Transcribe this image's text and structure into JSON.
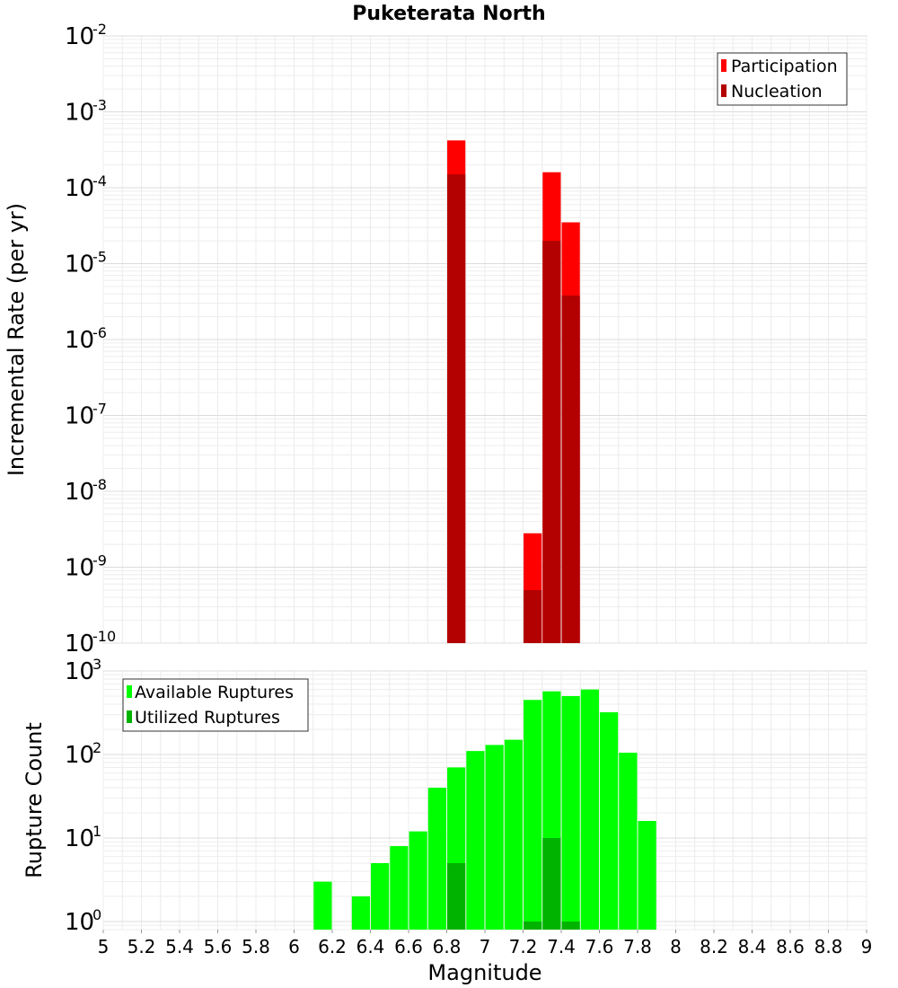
{
  "chart_data": [
    {
      "type": "bar",
      "title": "Puketerata North",
      "ylabel": "Incremental Rate (per yr)",
      "xlabel": "",
      "yscale": "log",
      "ylim": [
        1e-10,
        0.01
      ],
      "xlim": [
        5,
        9
      ],
      "ytick_exponents": [
        "-2",
        "-3",
        "-4",
        "-5",
        "-6",
        "-7",
        "-8",
        "-9",
        "-10"
      ],
      "ytick_base": "10",
      "grid": true,
      "legend_position": "top-right",
      "series": [
        {
          "name": "Participation",
          "color": "#ff0000",
          "x": [
            6.85,
            7.25,
            7.35,
            7.45
          ],
          "values": [
            0.00042,
            2.8e-09,
            0.00016,
            3.5e-05
          ]
        },
        {
          "name": "Nucleation",
          "color": "#b30000",
          "x": [
            6.85,
            7.25,
            7.35,
            7.45
          ],
          "values": [
            0.00015,
            5e-10,
            2e-05,
            3.8e-06
          ]
        }
      ]
    },
    {
      "type": "bar",
      "title": "",
      "ylabel": "Rupture Count",
      "xlabel": "Magnitude",
      "yscale": "log",
      "ylim": [
        0.8,
        1000
      ],
      "xlim": [
        5,
        9
      ],
      "ytick_exponents": [
        "3",
        "2",
        "1",
        "0"
      ],
      "ytick_base": "10",
      "xticks": [
        "5",
        "5.2",
        "5.4",
        "5.6",
        "5.8",
        "6",
        "6.2",
        "6.4",
        "6.6",
        "6.8",
        "7",
        "7.2",
        "7.4",
        "7.6",
        "7.8",
        "8",
        "8.2",
        "8.4",
        "8.6",
        "8.8",
        "9"
      ],
      "grid": true,
      "legend_position": "top-left",
      "series": [
        {
          "name": "Available Ruptures",
          "color": "#00ff00",
          "x": [
            6.15,
            6.35,
            6.45,
            6.55,
            6.65,
            6.75,
            6.85,
            6.95,
            7.05,
            7.15,
            7.25,
            7.35,
            7.45,
            7.55,
            7.65,
            7.75,
            7.85
          ],
          "values": [
            3,
            2,
            5,
            8,
            12,
            40,
            70,
            110,
            130,
            150,
            450,
            570,
            500,
            600,
            320,
            105,
            16
          ]
        },
        {
          "name": "Utilized Ruptures",
          "color": "#00b300",
          "x": [
            6.85,
            7.25,
            7.35,
            7.45
          ],
          "values": [
            5,
            1,
            10,
            1
          ]
        }
      ]
    }
  ]
}
